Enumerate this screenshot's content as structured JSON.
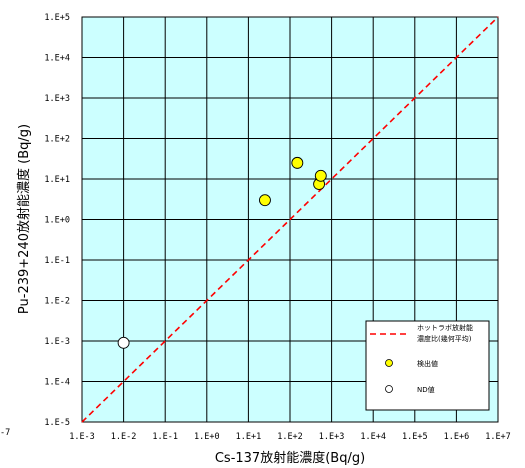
{
  "chart_data": {
    "type": "scatter",
    "xlabel": "Cs-137放射能濃度(Bq/g)",
    "ylabel": "Pu-239+240放射能濃度 (Bq/g)",
    "x_scale": "log",
    "y_scale": "log",
    "xlim": [
      0.001,
      10000000
    ],
    "ylim": [
      1e-05,
      100000
    ],
    "x_tick_labels": [
      "1.E-3",
      "1.E-2",
      "1.E-1",
      "1.E+0",
      "1.E+1",
      "1.E+2",
      "1.E+3",
      "1.E+4",
      "1.E+5",
      "1.E+6",
      "1.E+7"
    ],
    "y_tick_labels": [
      "1.E-5",
      "1.E-4",
      "1.E-3",
      "1.E-2",
      "1.E-1",
      "1.E+0",
      "1.E+1",
      "1.E+2",
      "1.E+3",
      "1.E+4",
      "1.E+5"
    ],
    "stray_tick_fragment": "-7",
    "grid": true,
    "plot_background": "#ccffff",
    "legend_position": "lower-right",
    "series": [
      {
        "name": "ホットラボ放射能濃度比(幾何平均)",
        "name_lines": [
          "ホットラボ放射能",
          "濃度比(幾何平均)"
        ],
        "kind": "line",
        "style": "dashed",
        "color": "#ff0000",
        "x": [
          0.001,
          10000000
        ],
        "y": [
          1e-05,
          100000
        ]
      },
      {
        "name": "検出値",
        "kind": "marker",
        "color": "#ffff00",
        "x": [
          25,
          150,
          500,
          550
        ],
        "y": [
          3,
          25,
          7.5,
          12
        ]
      },
      {
        "name": "ND値",
        "kind": "marker",
        "color": "#ffffff",
        "x": [
          0.01
        ],
        "y": [
          0.0009
        ]
      }
    ]
  }
}
